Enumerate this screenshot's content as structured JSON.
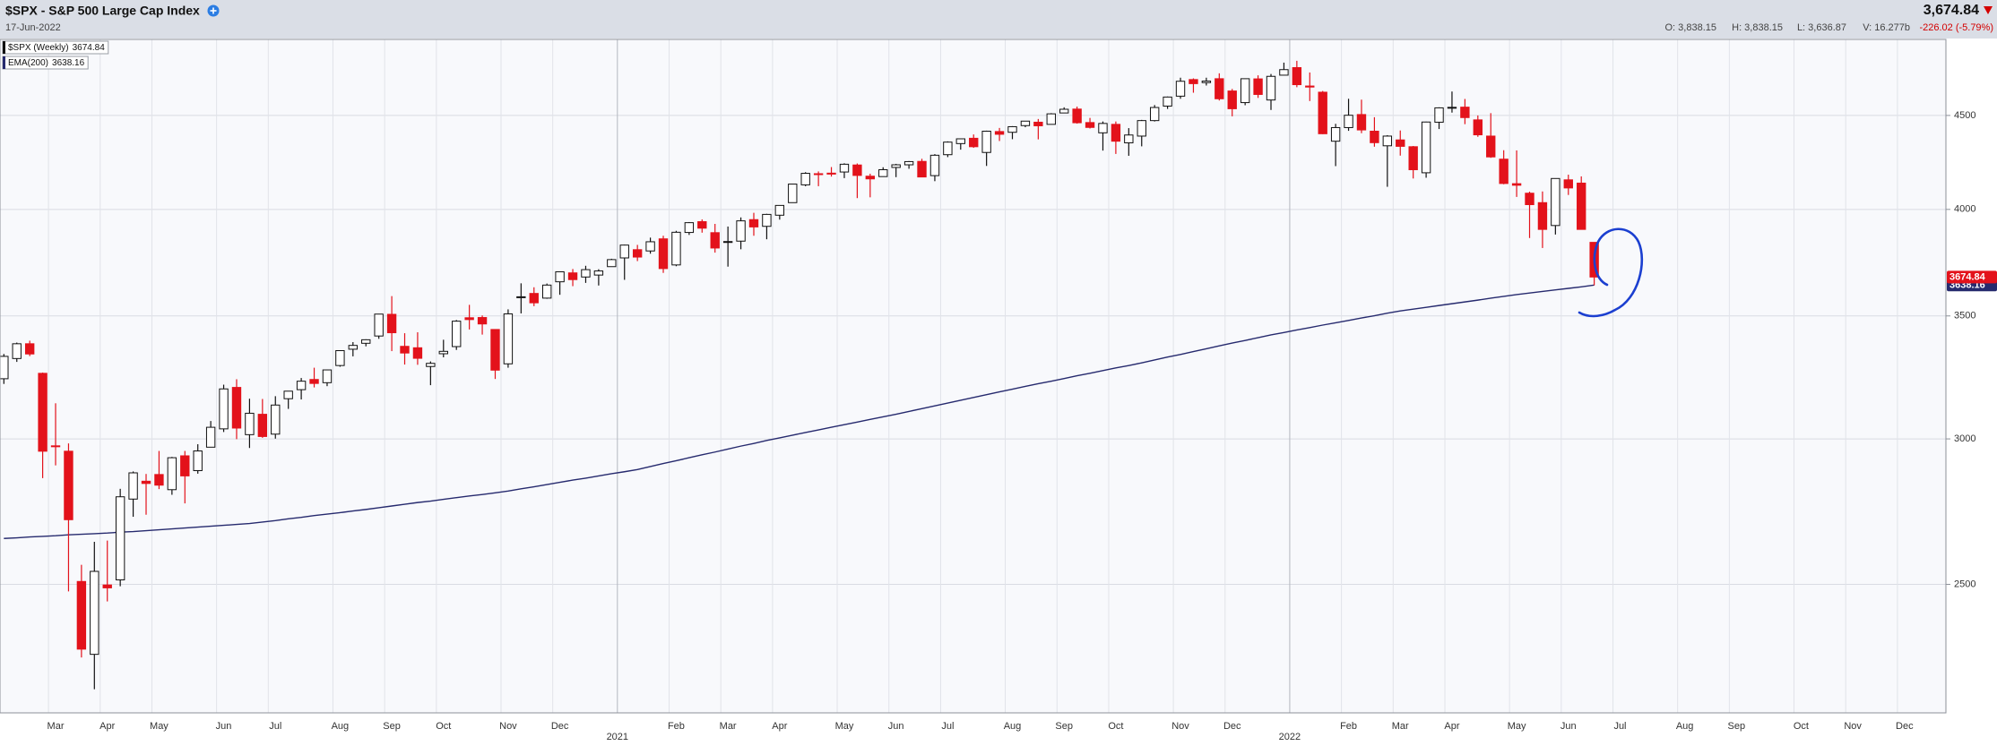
{
  "header": {
    "title": "$SPX - S&P 500 Large Cap Index",
    "date": "17-Jun-2022",
    "last": "3,674.84",
    "open": "O: 3,838.15",
    "high": "H: 3,838.15",
    "low": "L: 3,636.87",
    "volume": "V: 16.277b",
    "change": "-226.02 (-5.79%)"
  },
  "chart_data": {
    "type": "candlestick",
    "log_scale": true,
    "grid": true,
    "ylim": [
      2128,
      4950
    ],
    "yticks": [
      2500,
      3000,
      3500,
      4000,
      4500
    ],
    "categories": [
      null,
      null,
      null,
      null,
      "Mar",
      null,
      null,
      null,
      "Apr",
      null,
      null,
      null,
      "May",
      null,
      null,
      null,
      null,
      "Jun",
      null,
      null,
      null,
      "Jul",
      null,
      null,
      null,
      null,
      "Aug",
      null,
      null,
      null,
      "Sep",
      null,
      null,
      null,
      "Oct",
      null,
      null,
      null,
      null,
      "Nov",
      null,
      null,
      null,
      "Dec",
      null,
      null,
      null,
      null,
      null,
      null,
      null,
      null,
      "Feb",
      null,
      null,
      null,
      "Mar",
      null,
      null,
      null,
      "Apr",
      null,
      null,
      null,
      null,
      "May",
      null,
      null,
      null,
      "Jun",
      null,
      null,
      null,
      "Jul",
      null,
      null,
      null,
      null,
      "Aug",
      null,
      null,
      null,
      "Sep",
      null,
      null,
      null,
      "Oct",
      null,
      null,
      null,
      null,
      "Nov",
      null,
      null,
      null,
      "Dec",
      null,
      null,
      null,
      null,
      null,
      null,
      null,
      null,
      "Feb",
      null,
      null,
      null,
      "Mar",
      null,
      null,
      null,
      "Apr",
      null,
      null,
      null,
      null,
      "May",
      null,
      null,
      null,
      "Jun",
      null,
      null,
      null,
      "Jul",
      null,
      null,
      null,
      null,
      "Aug",
      null,
      null,
      null,
      "Sep",
      null,
      null,
      null,
      null,
      "Oct",
      null,
      null,
      null,
      "Nov",
      null,
      null,
      null,
      "Dec",
      null,
      null,
      null
    ],
    "year_labels": [
      null,
      null,
      null,
      null,
      null,
      null,
      null,
      null,
      null,
      null,
      null,
      null,
      null,
      null,
      null,
      null,
      null,
      null,
      null,
      null,
      null,
      null,
      null,
      null,
      null,
      null,
      null,
      null,
      null,
      null,
      null,
      null,
      null,
      null,
      null,
      null,
      null,
      null,
      null,
      null,
      null,
      null,
      null,
      null,
      null,
      null,
      null,
      null,
      "2021",
      null,
      null,
      null,
      null,
      null,
      null,
      null,
      null,
      null,
      null,
      null,
      null,
      null,
      null,
      null,
      null,
      null,
      null,
      null,
      null,
      null,
      null,
      null,
      null,
      null,
      null,
      null,
      null,
      null,
      null,
      null,
      null,
      null,
      null,
      null,
      null,
      null,
      null,
      null,
      null,
      null,
      null,
      null,
      null,
      null,
      null,
      null,
      null,
      null,
      null,
      null,
      "2022",
      null,
      null,
      null,
      null,
      null,
      null,
      null,
      null,
      null,
      null,
      null,
      null,
      null,
      null,
      null,
      null,
      null,
      null,
      null,
      null,
      null,
      null,
      null,
      null,
      null,
      null,
      null,
      null,
      null,
      null,
      null,
      null,
      null,
      null,
      null,
      null,
      null,
      null,
      null,
      null,
      null,
      null,
      null,
      null,
      null,
      null,
      null,
      null,
      null,
      null
    ],
    "series": [
      {
        "name": "$SPX (Weekly)",
        "type": "candlestick",
        "up_color": "#ffffff",
        "down_color": "#e3121b",
        "color": "#111111",
        "last_value": 3674.84,
        "open": [
          3235,
          3318,
          3380,
          3257,
          2974,
          2954,
          2509,
          2290,
          2498,
          2514,
          2782,
          2845,
          2869,
          2815,
          2937,
          2883,
          2969,
          3038,
          3200,
          3016,
          3094,
          3018,
          3155,
          3191,
          3232,
          3219,
          3289,
          3357,
          3382,
          3413,
          3507,
          3369,
          3363,
          3285,
          3338,
          3368,
          3492,
          3493,
          3441,
          3296,
          3583,
          3600,
          3579,
          3653,
          3694,
          3675,
          3684,
          3723,
          3764,
          3803,
          3797,
          3855,
          3731,
          3886,
          3939,
          3885,
          3842,
          3844,
          3949,
          3916,
          3971,
          4034,
          4125,
          4183,
          4186,
          4192,
          4229,
          4170,
          4168,
          4216,
          4230,
          4248,
          4173,
          4284,
          4344,
          4373,
          4296,
          4410,
          4406,
          4443,
          4462,
          4450,
          4514,
          4536,
          4460,
          4403,
          4450,
          4348,
          4385,
          4471,
          4553,
          4610,
          4707,
          4689,
          4712,
          4640,
          4573,
          4711,
          4588,
          4733,
          4778,
          4669,
          4633,
          4357,
          4432,
          4505,
          4412,
          4332,
          4364,
          4327,
          4188,
          4462,
          4541,
          4547,
          4475,
          4385,
          4260,
          4131,
          4082,
          4034,
          3920,
          4151,
          4134,
          3838.15,
          null,
          null,
          null,
          null,
          null,
          null,
          null,
          null,
          null,
          null,
          null,
          null,
          null,
          null,
          null,
          null,
          null,
          null,
          null,
          null,
          null,
          null,
          null,
          null,
          null,
          null,
          null
        ],
        "high": [
          3337,
          3385,
          3393,
          3260,
          3137,
          2983,
          2562,
          2637,
          2641,
          2818,
          2880,
          2871,
          2955,
          2933,
          2955,
          2980,
          3068,
          3211,
          3233,
          3155,
          3154,
          3165,
          3186,
          3238,
          3280,
          3272,
          3352,
          3387,
          3399,
          3509,
          3588,
          3425,
          3429,
          3306,
          3397,
          3482,
          3549,
          3502,
          3441,
          3529,
          3646,
          3628,
          3645,
          3699,
          3712,
          3727,
          3711,
          3760,
          3827,
          3826,
          3861,
          3870,
          3894,
          3937,
          3950,
          3928,
          3915,
          3960,
          3983,
          3978,
          4020,
          4130,
          4191,
          4195,
          4218,
          4238,
          4237,
          4183,
          4217,
          4235,
          4250,
          4262,
          4287,
          4356,
          4372,
          4394,
          4415,
          4430,
          4440,
          4468,
          4480,
          4513,
          4546,
          4550,
          4486,
          4466,
          4466,
          4429,
          4475,
          4559,
          4608,
          4718,
          4714,
          4718,
          4744,
          4652,
          4713,
          4732,
          4740,
          4808,
          4819,
          4749,
          4640,
          4453,
          4595,
          4590,
          4490,
          4390,
          4416,
          4331,
          4465,
          4546,
          4637,
          4594,
          4500,
          4513,
          4308,
          4307,
          4090,
          4091,
          4159,
          4178,
          4169,
          3838.15,
          null,
          null,
          null,
          null,
          null,
          null,
          null,
          null,
          null,
          null,
          null,
          null,
          null,
          null,
          null,
          null,
          null,
          null,
          null,
          null,
          null,
          null,
          null,
          null,
          null,
          null,
          null
        ],
        "low": [
          3214,
          3304,
          3328,
          2856,
          2902,
          2478,
          2281,
          2192,
          2447,
          2494,
          2721,
          2728,
          2817,
          2797,
          2767,
          2872,
          2969,
          3026,
          2999,
          2966,
          3004,
          3001,
          3115,
          3152,
          3200,
          3205,
          3284,
          3327,
          3369,
          3401,
          3349,
          3293,
          3292,
          3209,
          3323,
          3354,
          3441,
          3419,
          3234,
          3280,
          3511,
          3543,
          3576,
          3594,
          3633,
          3648,
          3636,
          3723,
          3662,
          3749,
          3784,
          3694,
          3725,
          3874,
          3885,
          3789,
          3723,
          3805,
          3870,
          3853,
          3949,
          4034,
          4118,
          4118,
          4168,
          4160,
          4057,
          4061,
          4168,
          4165,
          4209,
          4165,
          4144,
          4271,
          4311,
          4321,
          4224,
          4358,
          4368,
          4434,
          4367,
          4450,
          4513,
          4454,
          4427,
          4306,
          4288,
          4278,
          4329,
          4466,
          4537,
          4595,
          4630,
          4672,
          4585,
          4495,
          4558,
          4600,
          4531,
          4733,
          4662,
          4582,
          4396,
          4223,
          4414,
          4401,
          4327,
          4115,
          4279,
          4158,
          4162,
          4424,
          4516,
          4451,
          4381,
          4267,
          4128,
          4063,
          3859,
          3811,
          3876,
          4073,
          3901,
          3636.87,
          null,
          null,
          null,
          null,
          null,
          null,
          null,
          null,
          null,
          null,
          null,
          null,
          null,
          null,
          null,
          null,
          null,
          null,
          null,
          null,
          null,
          null,
          null,
          null,
          null,
          null,
          null
        ],
        "close": [
          3327,
          3380,
          3337,
          2954,
          2972,
          2711,
          2305,
          2541,
          2489,
          2790,
          2875,
          2837,
          2831,
          2930,
          2864,
          2955,
          3044,
          3194,
          3041,
          3098,
          3009,
          3130,
          3185,
          3225,
          3216,
          3271,
          3351,
          3373,
          3397,
          3508,
          3427,
          3341,
          3319,
          3298,
          3348,
          3477,
          3484,
          3465,
          3270,
          3509,
          3585,
          3558,
          3638,
          3699,
          3663,
          3709,
          3703,
          3756,
          3825,
          3768,
          3841,
          3714,
          3887,
          3934,
          3907,
          3811,
          3842,
          3943,
          3913,
          3975,
          4020,
          4129,
          4185,
          4180,
          4181,
          4233,
          4174,
          4156,
          4204,
          4230,
          4247,
          4166,
          4281,
          4352,
          4370,
          4327,
          4412,
          4395,
          4437,
          4468,
          4442,
          4509,
          4535,
          4459,
          4433,
          4455,
          4357,
          4391,
          4471,
          4545,
          4605,
          4697,
          4683,
          4698,
          4595,
          4538,
          4712,
          4620,
          4726,
          4766,
          4677,
          4663,
          4398,
          4432,
          4501,
          4419,
          4349,
          4385,
          4329,
          4204,
          4463,
          4543,
          4546,
          4488,
          4392,
          4272,
          4132,
          4123,
          4024,
          3901,
          4158,
          4109,
          3901,
          3674.84,
          null,
          null,
          null,
          null,
          null,
          null,
          null,
          null,
          null,
          null,
          null,
          null,
          null,
          null,
          null,
          null,
          null,
          null,
          null,
          null,
          null,
          null,
          null,
          null,
          null,
          null,
          null
        ]
      },
      {
        "name": "EMA(200)",
        "type": "line",
        "color": "#262a6e",
        "last_value": 3638.16,
        "values": [
          2648,
          2650,
          2653,
          2655,
          2657,
          2660,
          2662,
          2664,
          2666,
          2669,
          2671,
          2674,
          2677,
          2680,
          2683,
          2686,
          2689,
          2692,
          2695,
          2698,
          2703,
          2708,
          2714,
          2719,
          2725,
          2730,
          2735,
          2741,
          2746,
          2752,
          2758,
          2764,
          2770,
          2775,
          2781,
          2787,
          2793,
          2798,
          2804,
          2810,
          2818,
          2825,
          2833,
          2841,
          2849,
          2856,
          2864,
          2872,
          2879,
          2887,
          2898,
          2909,
          2919,
          2930,
          2941,
          2951,
          2962,
          2973,
          2983,
          2994,
          3004,
          3014,
          3024,
          3034,
          3044,
          3054,
          3064,
          3074,
          3084,
          3094,
          3105,
          3116,
          3127,
          3138,
          3149,
          3160,
          3171,
          3182,
          3193,
          3204,
          3215,
          3225,
          3236,
          3247,
          3257,
          3268,
          3279,
          3289,
          3300,
          3312,
          3324,
          3335,
          3347,
          3359,
          3371,
          3383,
          3394,
          3406,
          3418,
          3428,
          3439,
          3449,
          3460,
          3470,
          3480,
          3491,
          3501,
          3512,
          3522,
          3530,
          3538,
          3546,
          3554,
          3562,
          3570,
          3579,
          3587,
          3595,
          3602,
          3609,
          3616,
          3623,
          3630,
          3638.16,
          null,
          null,
          null,
          null,
          null,
          null,
          null,
          null,
          null,
          null,
          null,
          null,
          null,
          null,
          null,
          null,
          null,
          null,
          null,
          null,
          null,
          null,
          null,
          null,
          null,
          null,
          null
        ]
      }
    ]
  }
}
